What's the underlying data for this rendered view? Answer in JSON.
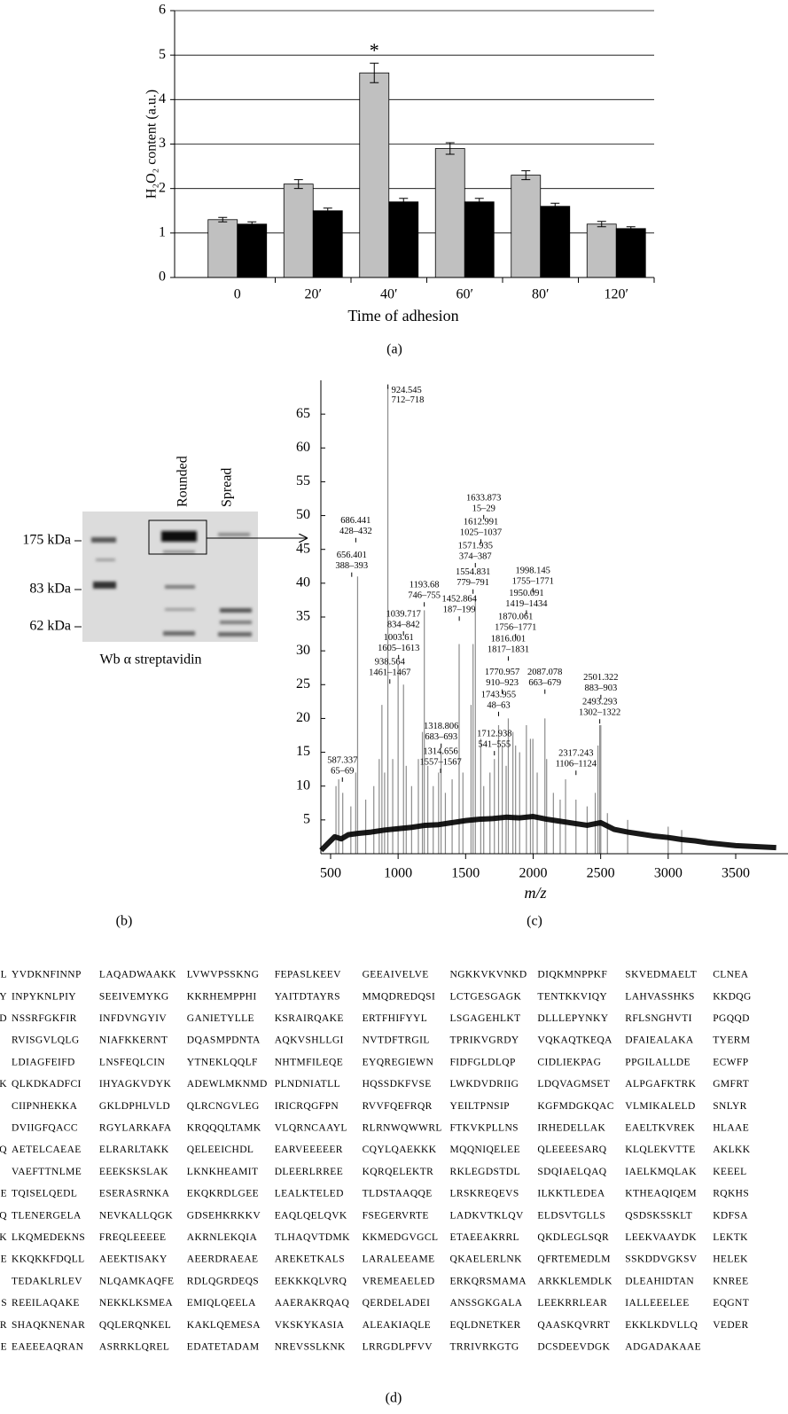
{
  "chart_data": [
    {
      "type": "bar",
      "ylabel": "H₂O₂ content (a.u.)",
      "xlabel": "Time of adhesion",
      "caption": "(a)",
      "categories": [
        "0",
        "20′",
        "40′",
        "60′",
        "80′",
        "120′"
      ],
      "series": [
        {
          "color": "#c0c0c0",
          "values": [
            1.3,
            2.1,
            4.6,
            2.9,
            2.3,
            1.2
          ],
          "errors": [
            0.05,
            0.1,
            0.22,
            0.13,
            0.1,
            0.06
          ]
        },
        {
          "color": "#000000",
          "values": [
            1.2,
            1.5,
            1.7,
            1.7,
            1.6,
            1.1
          ],
          "errors": [
            0.05,
            0.06,
            0.08,
            0.08,
            0.07,
            0.04
          ]
        }
      ],
      "annotations": [
        {
          "text": "*",
          "category": "40′"
        }
      ],
      "ylim": [
        0,
        6
      ],
      "yticks": [
        0,
        1,
        2,
        3,
        4,
        5,
        6
      ],
      "grid": true
    },
    {
      "type": "spectrum",
      "xlabel": "m/z",
      "caption": "(c)",
      "trace": {
        "color": "#000000",
        "x": [
          430,
          480,
          530,
          580,
          630,
          700,
          800,
          900,
          1000,
          1100,
          1200,
          1300,
          1400,
          1500,
          1600,
          1700,
          1800,
          1900,
          2000,
          2100,
          2200,
          2300,
          2400,
          2500,
          2600,
          2700,
          2800,
          2900,
          3000,
          3100,
          3200,
          3300,
          3400,
          3500,
          3600,
          3700,
          3800
        ],
        "values": [
          0.5,
          1.5,
          2.5,
          2.2,
          2.8,
          3.0,
          3.2,
          3.5,
          3.7,
          3.9,
          4.2,
          4.3,
          4.6,
          4.9,
          5.1,
          5.2,
          5.4,
          5.3,
          5.5,
          5.1,
          4.8,
          4.5,
          4.2,
          4.6,
          3.6,
          3.2,
          2.9,
          2.6,
          2.4,
          2.1,
          1.9,
          1.6,
          1.4,
          1.2,
          1.1,
          1.0,
          0.9
        ]
      },
      "peaks": {
        "color": "#8c8c8c",
        "x": [
          540,
          560,
          590,
          650,
          686,
          700,
          760,
          820,
          860,
          880,
          900,
          924,
          960,
          1000,
          1040,
          1060,
          1100,
          1150,
          1180,
          1194,
          1220,
          1260,
          1300,
          1318,
          1350,
          1400,
          1452,
          1480,
          1540,
          1555,
          1572,
          1612,
          1634,
          1680,
          1713,
          1744,
          1771,
          1800,
          1816,
          1850,
          1870,
          1900,
          1950,
          1980,
          1998,
          2030,
          2087,
          2100,
          2150,
          2200,
          2240,
          2317,
          2400,
          2460,
          2480,
          2493,
          2501,
          2550,
          2700,
          3000,
          3100
        ],
        "values": [
          10,
          11,
          9,
          7,
          12,
          41,
          8,
          10,
          14,
          22,
          12,
          69,
          14,
          28,
          25,
          13,
          10,
          14,
          18,
          36,
          13,
          10,
          12,
          15,
          9,
          11,
          31,
          12,
          22,
          31,
          38,
          17,
          10,
          12,
          14,
          19,
          16,
          13,
          20,
          18,
          16,
          15,
          19,
          17,
          17,
          12,
          20,
          14,
          9,
          8,
          11,
          8,
          7,
          9,
          16,
          19,
          19,
          6,
          5,
          4,
          3.5
        ]
      },
      "annotations": [
        {
          "mz": 587.337,
          "range": "65–69",
          "y": 10.9
        },
        {
          "mz": 686.441,
          "range": "428–432",
          "y": 46.3
        },
        {
          "mz": 656.401,
          "range": "388–393",
          "y": 41.2
        },
        {
          "mz": 924.545,
          "range": "712–718",
          "y": 69
        },
        {
          "mz": 1193.68,
          "range": "746–755",
          "y": 36.8
        },
        {
          "mz": 1039.717,
          "range": "834–842",
          "y": 32.5
        },
        {
          "mz": 1003.61,
          "range": "1605–1613",
          "y": 29
        },
        {
          "mz": 938.564,
          "range": "1461–1467",
          "y": 25.4
        },
        {
          "mz": 1318.806,
          "range": "683–693",
          "y": 15.9
        },
        {
          "mz": 1314.656,
          "range": "1557–1567",
          "y": 12.2
        },
        {
          "mz": 1633.873,
          "range": "15–29",
          "y": 49.7
        },
        {
          "mz": 1612.991,
          "range": "1025–1037",
          "y": 46.1
        },
        {
          "mz": 1571.935,
          "range": "374–387",
          "y": 42.6
        },
        {
          "mz": 1554.831,
          "range": "779–791",
          "y": 38.7
        },
        {
          "mz": 1452.864,
          "range": "187–199",
          "y": 34.7
        },
        {
          "mz": 1998.145,
          "range": "1755–1771",
          "y": 38.9
        },
        {
          "mz": 1950.091,
          "range": "1419–1434",
          "y": 35.6
        },
        {
          "mz": 1870.061,
          "range": "1756–1771",
          "y": 32.1
        },
        {
          "mz": 1816.001,
          "range": "1817–1831",
          "y": 28.8
        },
        {
          "mz": 1770.957,
          "range": "910–923",
          "y": 23.9
        },
        {
          "mz": 1743.955,
          "range": "48–63",
          "y": 20.6
        },
        {
          "mz": 1712.938,
          "range": "541–555",
          "y": 14.8
        },
        {
          "mz": 2087.078,
          "range": "663–679",
          "y": 23.9
        },
        {
          "mz": 2317.243,
          "range": "1106–1124",
          "y": 11.9
        },
        {
          "mz": 2501.322,
          "range": "883–903",
          "y": 23.1
        },
        {
          "mz": 2493.293,
          "range": "1302–1322",
          "y": 19.5
        }
      ],
      "xlim": [
        428,
        3800
      ],
      "ylim": [
        0,
        70
      ],
      "xticks": [
        500,
        1000,
        1500,
        2000,
        2500,
        3000,
        3500
      ],
      "yticks": [
        5,
        10,
        15,
        20,
        25,
        30,
        35,
        40,
        45,
        50,
        55,
        60,
        65
      ]
    }
  ],
  "gel": {
    "markers": [
      "175 kDa",
      "83 kDa",
      "62 kDa"
    ],
    "lanes": [
      "Rounded",
      "Spread"
    ],
    "label": "Wb α streptavidin",
    "caption": "(b)"
  },
  "sequence": {
    "caption": "(d)",
    "rows": [
      {
        "lead": "L",
        "blocks": [
          "YVDKNFINNP",
          "LAQADWAAKK",
          "LVWVPSSKNG",
          "FEPASLKEEV",
          "GEEAIVELVE",
          "NGKKVKVNKD",
          "DIQKMNPPKF",
          "SKVEDMAELT",
          "CLNEA"
        ]
      },
      {
        "lead": "Y",
        "blocks": [
          "INPYKNLPIY",
          "SEEIVEMYKG",
          "KKRHEMPPHI",
          "YAITDTAYRS",
          "MMQDREDQSI",
          "LCTGESGAGK",
          "TENTKKVIQY",
          "LAHVASSHKS",
          "KKDQG"
        ]
      },
      {
        "lead": "D",
        "blocks": [
          "NSSRFGKFIR",
          "INFDVNGYIV",
          "GANIETYLLE",
          "KSRAIRQAKE",
          "ERTFHIFYYL",
          "LSGAGEHLKT",
          "DLLLEPYNKY",
          "RFLSNGHVTI",
          "PGQQD"
        ]
      },
      {
        "blocks": [
          "RVISGVLQLG",
          "NIAFKKERNT",
          "DQASMPDNTA",
          "AQKVSHLLGI",
          "NVTDFTRGIL",
          "TPRIKVGRDY",
          "VQKAQTKEQA",
          "DFAIEALAKA",
          "TYERM"
        ]
      },
      {
        "blocks": [
          "LDIAGFEIFD",
          "LNSFEQLCIN",
          "YTNEKLQQLF",
          "NHTMFILEQE",
          "EYQREGIEWN",
          "FIDFGLDLQP",
          "CIDLIEKPAG",
          "PPGILALLDE",
          "ECWFP"
        ]
      },
      {
        "lead": "K",
        "blocks": [
          "QLKDKADFCI",
          "IHYAGKVDYK",
          "ADEWLMKNMD",
          "PLNDNIATLL",
          "HQSSDKFVSE",
          "LWKDVDRIIG",
          "LDQVAGMSET",
          "ALPGAFKTRK",
          "GMFRT"
        ]
      },
      {
        "blocks": [
          "CIIPNHEKKA",
          "GKLDPHLVLD",
          "QLRCNGVLEG",
          "IRICRQGFPN",
          "RVVFQEFRQR",
          "YEILTPNSIP",
          "KGFMDGKQAC",
          "VLMIKALELD",
          "SNLYR"
        ]
      },
      {
        "blocks": [
          "DVIIGFQACC",
          "RGYLARKAFA",
          "KRQQQLTAMK",
          "VLQRNCAAYL",
          "RLRNWQWWRL",
          "FTKVKPLLNS",
          "IRHEDELLAK",
          "EAELTKVREK",
          "HLAAE"
        ]
      },
      {
        "lead": "Q",
        "blocks": [
          "AETELCAEAE",
          "ELRARLTAKK",
          "QELEEICHDL",
          "EARVEEEEER",
          "CQYLQAEKKK",
          "MQQNIQELEE",
          "QLEEEESARQ",
          "KLQLEKVTTE",
          "AKLKK"
        ]
      },
      {
        "blocks": [
          "VAEFTTNLME",
          "EEEKSKSLAK",
          "LKNKHEAMIT",
          "DLEERLRREE",
          "KQRQELEKTR",
          "RKLEGDSTDL",
          "SDQIAELQAQ",
          "IAELKMQLAK",
          "KEEEL"
        ]
      },
      {
        "lead": "E",
        "blocks": [
          "TQISELQEDL",
          "ESERASRNKA",
          "EKQKRDLGEE",
          "LEALKTELED",
          "TLDSTAAQQE",
          "LRSKREQEVS",
          "ILKKTLEDEA",
          "KTHEAQIQEM",
          "RQKHS"
        ]
      },
      {
        "lead": "Q",
        "blocks": [
          "TLENERGELA",
          "NEVKALLQGK",
          "GDSEHKRKKV",
          "EAQLQELQVK",
          "FSEGERVRTE",
          "LADKVTKLQV",
          "ELDSVTGLLS",
          "QSDSKSSKLT",
          "KDFSA"
        ]
      },
      {
        "lead": "K",
        "blocks": [
          "LKQMEDEKNS",
          "FREQLEEEEE",
          "AKRNLEKQIA",
          "TLHAQVTDMK",
          "KKMEDGVGCL",
          "ETAEEAKRRL",
          "QKDLEGLSQR",
          "LEEKVAAYDK",
          "LEKTK"
        ]
      },
      {
        "lead": "E",
        "blocks": [
          "KKQKKFDQLL",
          "AEEKTISAKY",
          "AEERDRAEAE",
          "AREKETKALS",
          "LARALEEAME",
          "QKAELERLNK",
          "QFRTEMEDLM",
          "SSKDDVGKSV",
          "HELEK"
        ]
      },
      {
        "blocks": [
          "TEDAKLRLEV",
          "NLQAMKAQFE",
          "RDLQGRDEQS",
          "EEKKKQLVRQ",
          "VREMEAELED",
          "ERKQRSMAMA",
          "ARKKLEMDLK",
          "DLEAHIDTAN",
          "KNREE"
        ]
      },
      {
        "lead": "S",
        "blocks": [
          "REEILAQAKE",
          "NEKKLKSMEA",
          "EMIQLQEELA",
          "AAERAKRQAQ",
          "QERDELADEI",
          "ANSSGKGALA",
          "LEEKRRLEAR",
          "IALLEEELEE",
          "EQGNT"
        ]
      },
      {
        "lead": "R",
        "blocks": [
          "SHAQKNENAR",
          "QQLERQNKEL",
          "KAKLQEMESA",
          "VKSKYKASIA",
          "ALEAKIAQLE",
          "EQLDNETKER",
          "QAASKQVRRT",
          "EKKLKDVLLQ",
          "VEDER"
        ]
      },
      {
        "lead": "E",
        "blocks": [
          "EAEEEAQRAN",
          "ASRRKLQREL",
          "EDATETADAM",
          "NREVSSLKNK",
          "LRRGDLPFVV",
          "TRRIVRKGTG",
          "DCSDEEVDGK",
          "ADGADAKAAE"
        ]
      }
    ]
  }
}
